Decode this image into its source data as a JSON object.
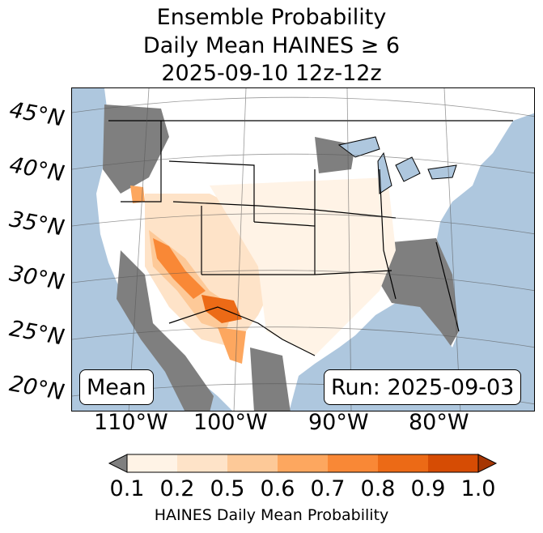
{
  "title": {
    "line1": "Ensemble Probability",
    "line2": "Daily Mean HAINES ≥ 6",
    "line3": "2025-09-10 12z-12z"
  },
  "map": {
    "region": "Continental United States",
    "lat_labels": [
      "45°N",
      "40°N",
      "35°N",
      "30°N",
      "25°N",
      "20°N"
    ],
    "lon_labels": [
      "110°W",
      "100°W",
      "90°W",
      "80°W"
    ],
    "colors": {
      "ocean": "#aec7de",
      "missing": "#7f7f7f",
      "land_low": "#ffffff",
      "lake": "#aec7de"
    }
  },
  "annotations": {
    "left": "Mean",
    "right": "Run: 2025-09-03"
  },
  "colorbar": {
    "ticks": [
      "0.1",
      "0.2",
      "0.5",
      "0.6",
      "0.7",
      "0.8",
      "0.9",
      "1.0"
    ],
    "colors": [
      "#7f7f7f",
      "#fff3e6",
      "#fee3c8",
      "#fdc998",
      "#fda75f",
      "#f98836",
      "#ec6a16",
      "#d64c04",
      "#a63603"
    ],
    "label": "HAINES Daily Mean Probability"
  }
}
